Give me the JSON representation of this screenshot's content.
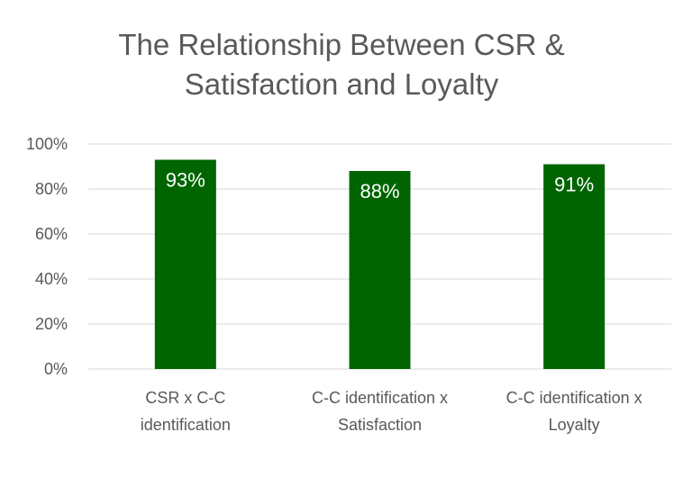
{
  "chart_data": {
    "type": "bar",
    "title_lines": [
      "The Relationship Between CSR &",
      "Satisfaction and Loyalty"
    ],
    "categories": [
      [
        "CSR x C-C",
        "identification"
      ],
      [
        "C-C identification x",
        "Satisfaction"
      ],
      [
        "C-C identification x",
        "Loyalty"
      ]
    ],
    "values": [
      93,
      88,
      91
    ],
    "data_labels": [
      "93%",
      "88%",
      "91%"
    ],
    "y_ticks": [
      "0%",
      "20%",
      "40%",
      "60%",
      "80%",
      "100%"
    ],
    "ylim": [
      0,
      100
    ],
    "grid": true,
    "bar_color": "#006400",
    "grid_color": "#d9d9d9",
    "text_color": "#595959",
    "label_color": "#ffffff"
  }
}
